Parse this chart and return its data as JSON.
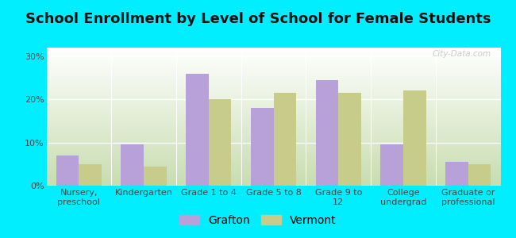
{
  "title": "School Enrollment by Level of School for Female Students",
  "categories": [
    "Nursery,\npreschool",
    "Kindergarten",
    "Grade 1 to 4",
    "Grade 5 to 8",
    "Grade 9 to\n12",
    "College\nundergrad",
    "Graduate or\nprofessional"
  ],
  "grafton": [
    7.0,
    9.5,
    26.0,
    18.0,
    24.5,
    9.5,
    5.5
  ],
  "vermont": [
    5.0,
    4.5,
    20.0,
    21.5,
    21.5,
    22.0,
    5.0
  ],
  "grafton_color": "#b8a0d8",
  "vermont_color": "#c8cc8a",
  "background_outer": "#00eeff",
  "gradient_top": "#ffffff",
  "gradient_bottom": "#c8ddb0",
  "ylim": [
    0,
    32
  ],
  "yticks": [
    0,
    10,
    20,
    30
  ],
  "ytick_labels": [
    "0%",
    "10%",
    "20%",
    "30%"
  ],
  "bar_width": 0.35,
  "legend_labels": [
    "Grafton",
    "Vermont"
  ],
  "title_fontsize": 13,
  "tick_fontsize": 8,
  "legend_fontsize": 10,
  "watermark": "City-Data.com"
}
